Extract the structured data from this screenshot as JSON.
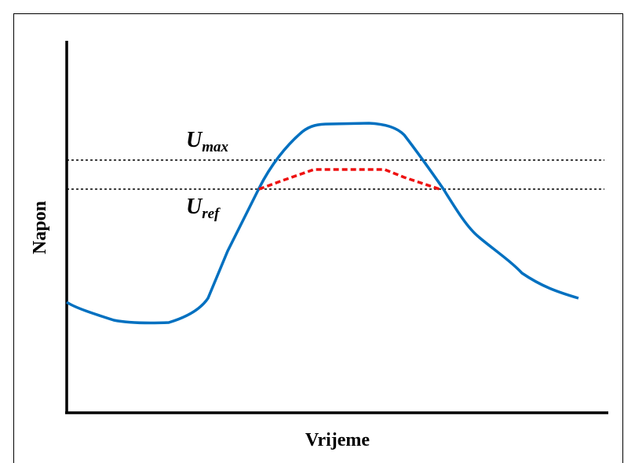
{
  "axis_labels": {
    "y": "Napon",
    "x": "Vrijeme"
  },
  "levels": [
    {
      "symbol": "U",
      "subscript": "max"
    },
    {
      "symbol": "U",
      "subscript": "ref"
    }
  ]
}
